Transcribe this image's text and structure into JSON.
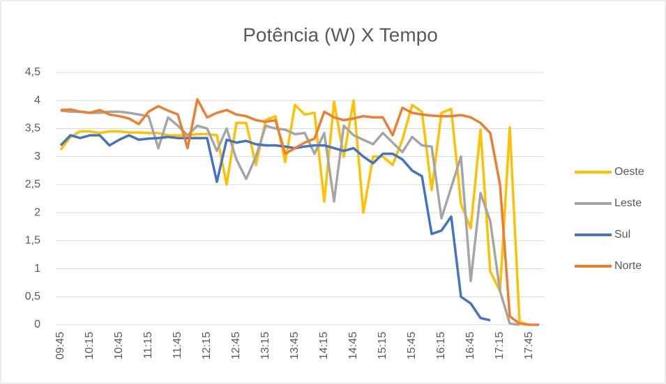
{
  "chart_data": {
    "type": "line",
    "title": "Potência (W) X Tempo",
    "categories": [
      "09:45",
      null,
      null,
      "10:15",
      null,
      null,
      "10:45",
      null,
      null,
      "11:15",
      null,
      null,
      "11:45",
      null,
      null,
      "12:15",
      null,
      null,
      "12:45",
      null,
      null,
      "13:15",
      null,
      null,
      "13:45",
      null,
      null,
      "14:15",
      null,
      null,
      "14:45",
      null,
      null,
      "15:15",
      null,
      null,
      "15:45",
      null,
      null,
      "16:15",
      null,
      null,
      "16:45",
      null,
      null,
      "17:15",
      null,
      null,
      "17:45",
      null
    ],
    "series": [
      {
        "name": "Oeste",
        "color": "#FFC000",
        "values": [
          3.12,
          3.35,
          3.45,
          3.45,
          3.42,
          3.45,
          3.45,
          3.43,
          3.43,
          3.42,
          3.42,
          3.38,
          3.38,
          3.38,
          3.4,
          3.4,
          3.38,
          2.5,
          3.6,
          3.6,
          2.85,
          3.65,
          3.72,
          2.9,
          3.92,
          3.75,
          3.78,
          2.2,
          3.98,
          3.0,
          4.0,
          2.0,
          3.0,
          3.0,
          2.85,
          3.3,
          3.92,
          3.8,
          2.4,
          3.78,
          3.85,
          2.15,
          1.72,
          3.48,
          0.95,
          0.6,
          3.52,
          0.05,
          0,
          null
        ]
      },
      {
        "name": "Leste",
        "color": "#A5A5A5",
        "values": [
          3.82,
          3.8,
          3.8,
          3.78,
          3.78,
          3.8,
          3.8,
          3.78,
          3.75,
          3.72,
          3.15,
          3.7,
          3.55,
          3.38,
          3.55,
          3.5,
          3.1,
          3.5,
          2.95,
          2.6,
          3.0,
          3.55,
          3.5,
          3.48,
          3.4,
          3.42,
          3.05,
          3.42,
          2.2,
          3.55,
          3.38,
          3.3,
          3.22,
          3.42,
          3.25,
          3.08,
          3.35,
          3.2,
          3.18,
          1.9,
          2.45,
          3.0,
          0.78,
          2.35,
          1.85,
          0.6,
          0.02,
          0,
          null,
          null
        ]
      },
      {
        "name": "Sul",
        "color": "#4472C4",
        "values": [
          3.2,
          3.38,
          3.33,
          3.38,
          3.38,
          3.2,
          3.3,
          3.38,
          3.3,
          3.32,
          3.33,
          3.35,
          3.33,
          3.33,
          3.33,
          3.33,
          2.55,
          3.3,
          3.25,
          3.28,
          3.22,
          3.2,
          3.2,
          3.18,
          3.15,
          3.18,
          3.2,
          3.2,
          3.15,
          3.1,
          3.15,
          3.0,
          2.88,
          3.05,
          3.05,
          2.95,
          2.75,
          2.65,
          1.62,
          1.68,
          1.93,
          0.5,
          0.38,
          0.12,
          0.08,
          null,
          null,
          null,
          null,
          null
        ]
      },
      {
        "name": "Norte",
        "color": "#ED7D31",
        "values": [
          3.83,
          3.84,
          3.8,
          3.78,
          3.83,
          3.75,
          3.72,
          3.68,
          3.58,
          3.8,
          3.9,
          3.82,
          3.75,
          3.15,
          4.02,
          3.7,
          3.78,
          3.83,
          3.75,
          3.72,
          3.65,
          3.62,
          3.65,
          3.05,
          3.15,
          3.25,
          3.32,
          3.8,
          3.7,
          3.65,
          3.68,
          3.72,
          3.7,
          3.7,
          3.38,
          3.87,
          3.78,
          3.75,
          3.73,
          3.72,
          3.72,
          3.74,
          3.7,
          3.6,
          3.42,
          2.5,
          0.15,
          0.02,
          0,
          0
        ]
      }
    ],
    "ylim": [
      0,
      4.5
    ],
    "yticks": [
      0,
      {
        "value": 0.5,
        "label": "0,5"
      },
      1,
      {
        "value": 1.5,
        "label": "1,5"
      },
      2,
      {
        "value": 2.5,
        "label": "2,5"
      },
      3,
      {
        "value": 3.5,
        "label": "3,5"
      },
      4,
      {
        "value": 4.5,
        "label": "4,5"
      }
    ],
    "grid": true,
    "legend": "right"
  }
}
